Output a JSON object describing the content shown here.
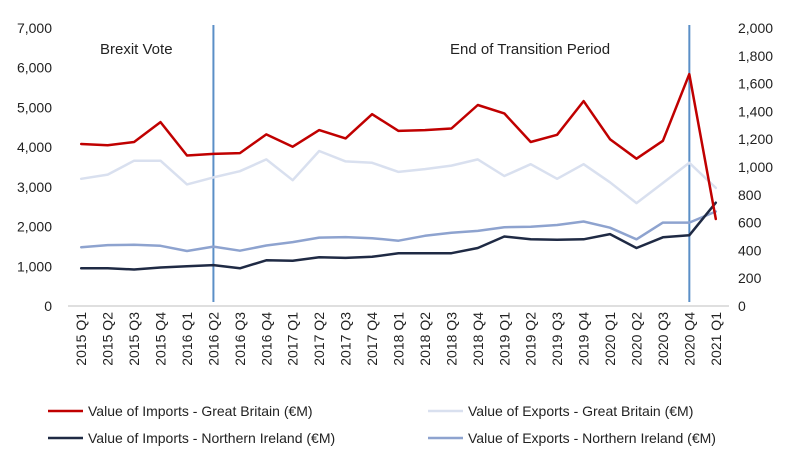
{
  "chart_data": {
    "type": "line",
    "categories": [
      "2015 Q1",
      "2015 Q2",
      "2015 Q3",
      "2015 Q4",
      "2016 Q1",
      "2016 Q2",
      "2016 Q3",
      "2016 Q4",
      "2017 Q1",
      "2017 Q2",
      "2017 Q3",
      "2017 Q4",
      "2018 Q1",
      "2018 Q2",
      "2018 Q3",
      "2018 Q4",
      "2019 Q1",
      "2019 Q2",
      "2019 Q3",
      "2019 Q4",
      "2020 Q1",
      "2020 Q2",
      "2020 Q3",
      "2020 Q4",
      "2021 Q1"
    ],
    "left_axis": {
      "ylim": [
        0,
        7000
      ],
      "ticks": [
        "0",
        "1,000",
        "2,000",
        "3,000",
        "4,000",
        "5,000",
        "6,000",
        "7,000"
      ]
    },
    "right_axis": {
      "ylim": [
        0,
        2000
      ],
      "ticks": [
        "0",
        "200",
        "400",
        "600",
        "800",
        "1,000",
        "1,200",
        "1,400",
        "1,600",
        "1,800",
        "2,000"
      ]
    },
    "series": [
      {
        "name": "Value of Imports - Great Britain (€M)",
        "axis": "left",
        "color": "#c00000",
        "values": [
          4080,
          4050,
          4130,
          4630,
          3790,
          3830,
          3850,
          4320,
          4010,
          4430,
          4220,
          4830,
          4410,
          4430,
          4470,
          5060,
          4850,
          4130,
          4310,
          5160,
          4200,
          3710,
          4160,
          5840,
          2190
        ]
      },
      {
        "name": "Value of Exports - Great Britain (€M)",
        "axis": "right",
        "color": "#d9e0ef",
        "values": [
          915,
          945,
          1045,
          1045,
          875,
          925,
          970,
          1055,
          905,
          1115,
          1040,
          1030,
          965,
          985,
          1010,
          1055,
          935,
          1020,
          915,
          1020,
          890,
          740,
          885,
          1030,
          850
        ]
      },
      {
        "name": "Value of Imports - Northern Ireland (€M)",
        "axis": "left",
        "color": "#1f2a44",
        "values": [
          950,
          950,
          920,
          970,
          1000,
          1030,
          950,
          1150,
          1140,
          1230,
          1210,
          1240,
          1330,
          1330,
          1330,
          1460,
          1750,
          1680,
          1670,
          1680,
          1810,
          1460,
          1730,
          1780,
          2600
        ]
      },
      {
        "name": "Value of Exports - Northern Ireland (€M)",
        "axis": "right",
        "color": "#8ea3cf",
        "values": [
          423,
          438,
          440,
          433,
          396,
          427,
          398,
          435,
          460,
          492,
          496,
          488,
          470,
          505,
          527,
          540,
          567,
          570,
          583,
          608,
          563,
          480,
          600,
          600,
          680
        ]
      }
    ],
    "annotations": [
      {
        "text": "Brexit Vote",
        "at": "2016 Q2"
      },
      {
        "text": "End of Transition Period",
        "at": "2020 Q4"
      }
    ],
    "vline_color": "#5b8fc7",
    "legend": "bottom",
    "grid": false
  }
}
